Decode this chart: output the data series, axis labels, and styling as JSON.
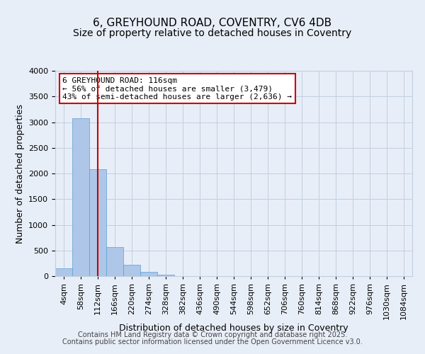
{
  "title_line1": "6, GREYHOUND ROAD, COVENTRY, CV6 4DB",
  "title_line2": "Size of property relative to detached houses in Coventry",
  "xlabel": "Distribution of detached houses by size in Coventry",
  "ylabel": "Number of detached properties",
  "bin_labels": [
    "4sqm",
    "58sqm",
    "112sqm",
    "166sqm",
    "220sqm",
    "274sqm",
    "328sqm",
    "382sqm",
    "436sqm",
    "490sqm",
    "544sqm",
    "598sqm",
    "652sqm",
    "706sqm",
    "760sqm",
    "814sqm",
    "868sqm",
    "922sqm",
    "976sqm",
    "1030sqm",
    "1084sqm"
  ],
  "bar_values": [
    150,
    3080,
    2080,
    570,
    220,
    80,
    30,
    5,
    2,
    0,
    0,
    0,
    0,
    0,
    0,
    0,
    0,
    0,
    0,
    0,
    0
  ],
  "bar_color": "#aec6e8",
  "bar_edge_color": "#5a9fd4",
  "vline_x": 2,
  "vline_color": "#cc0000",
  "ylim": [
    0,
    4000
  ],
  "yticks": [
    0,
    500,
    1000,
    1500,
    2000,
    2500,
    3000,
    3500,
    4000
  ],
  "annotation_text": "6 GREYHOUND ROAD: 116sqm\n← 56% of detached houses are smaller (3,479)\n43% of semi-detached houses are larger (2,636) →",
  "annotation_box_color": "#ffffff",
  "annotation_box_edge": "#cc0000",
  "grid_color": "#c0cfe0",
  "bg_color": "#e8eef8",
  "plot_bg_color": "#e8eef8",
  "footer_line1": "Contains HM Land Registry data © Crown copyright and database right 2025.",
  "footer_line2": "Contains public sector information licensed under the Open Government Licence v3.0.",
  "title_fontsize": 11,
  "subtitle_fontsize": 10,
  "axis_label_fontsize": 9,
  "tick_fontsize": 8,
  "annotation_fontsize": 8,
  "footer_fontsize": 7
}
